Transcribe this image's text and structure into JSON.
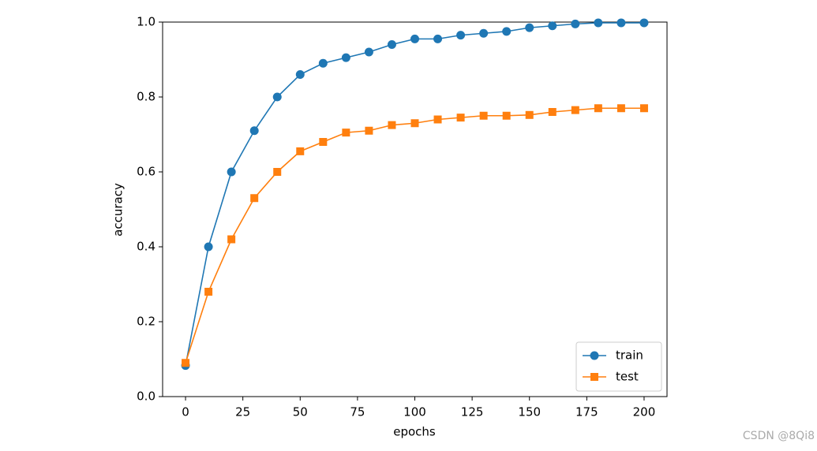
{
  "chart_data": {
    "type": "line",
    "x": [
      0,
      10,
      20,
      30,
      40,
      50,
      60,
      70,
      80,
      90,
      100,
      110,
      120,
      130,
      140,
      150,
      160,
      170,
      180,
      190,
      200
    ],
    "series": [
      {
        "name": "train",
        "color": "#1f77b4",
        "marker": "circle",
        "values": [
          0.083,
          0.4,
          0.6,
          0.71,
          0.8,
          0.86,
          0.89,
          0.905,
          0.92,
          0.94,
          0.955,
          0.955,
          0.965,
          0.97,
          0.975,
          0.985,
          0.99,
          0.995,
          0.998,
          0.998,
          0.998
        ]
      },
      {
        "name": "test",
        "color": "#ff7f0e",
        "marker": "square",
        "values": [
          0.09,
          0.28,
          0.42,
          0.53,
          0.6,
          0.655,
          0.68,
          0.705,
          0.71,
          0.725,
          0.73,
          0.74,
          0.745,
          0.75,
          0.75,
          0.752,
          0.76,
          0.765,
          0.77,
          0.77,
          0.77
        ]
      }
    ],
    "xlabel": "epochs",
    "ylabel": "accuracy",
    "xlim": [
      -10,
      210
    ],
    "ylim": [
      0,
      1
    ],
    "xticks": [
      0,
      25,
      50,
      75,
      100,
      125,
      150,
      175,
      200
    ],
    "yticks": [
      {
        "value": 0,
        "label": "0.0"
      },
      {
        "value": 0.2,
        "label": "0.2"
      },
      {
        "value": 0.4,
        "label": "0.4"
      },
      {
        "value": 0.6,
        "label": "0.6"
      },
      {
        "value": 0.8,
        "label": "0.8"
      },
      {
        "value": 1,
        "label": "1.0"
      }
    ],
    "legend": "lower right",
    "watermark": "CSDN @8Qi8"
  }
}
